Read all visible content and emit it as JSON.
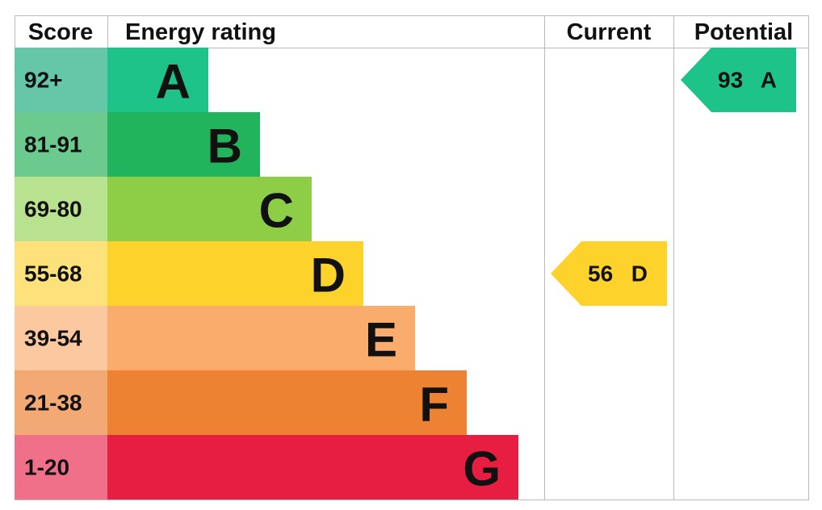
{
  "headers": {
    "score": "Score",
    "rating": "Energy rating",
    "current": "Current",
    "potential": "Potential"
  },
  "bands": [
    {
      "score": "92+",
      "letter": "A",
      "color": "#1dc388",
      "light": "#66c6a8"
    },
    {
      "score": "81-91",
      "letter": "B",
      "color": "#22b45d",
      "light": "#6cca8e"
    },
    {
      "score": "69-80",
      "letter": "C",
      "color": "#8dce46",
      "light": "#b9e290"
    },
    {
      "score": "55-68",
      "letter": "D",
      "color": "#fdd32b",
      "light": "#fde17a"
    },
    {
      "score": "39-54",
      "letter": "E",
      "color": "#f9ac6b",
      "light": "#fcc8a0"
    },
    {
      "score": "21-38",
      "letter": "F",
      "color": "#ee8233",
      "light": "#f2a973"
    },
    {
      "score": "1-20",
      "letter": "G",
      "color": "#e71d42",
      "light": "#ef7088"
    }
  ],
  "current": {
    "value": 56,
    "letter": "D"
  },
  "potential": {
    "value": 93,
    "letter": "A"
  }
}
